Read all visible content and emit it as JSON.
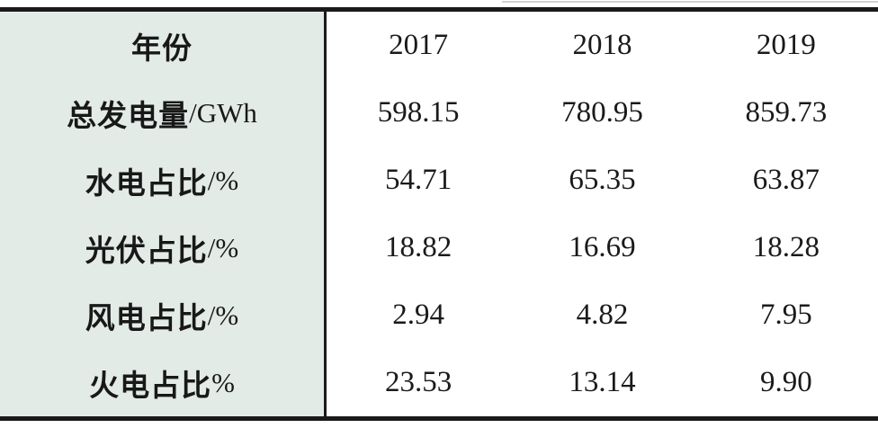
{
  "table": {
    "header": {
      "label": "年份",
      "unit": "",
      "years": [
        "2017",
        "2018",
        "2019"
      ]
    },
    "rows": [
      {
        "label": "总发电量",
        "unit": "/GWh",
        "values": [
          "598.15",
          "780.95",
          "859.73"
        ]
      },
      {
        "label": "水电占比",
        "unit": "/%",
        "values": [
          "54.71",
          "65.35",
          "63.87"
        ]
      },
      {
        "label": "光伏占比",
        "unit": "/%",
        "values": [
          "18.82",
          "16.69",
          "18.28"
        ]
      },
      {
        "label": "风电占比",
        "unit": "/%",
        "values": [
          "2.94",
          "4.82",
          "7.95"
        ]
      },
      {
        "label": "火电占比",
        "unit": "%",
        "values": [
          "23.53",
          "13.14",
          "9.90"
        ]
      }
    ],
    "colors": {
      "label_column_bg": "#e3ebe7",
      "border": "#1a1a1a",
      "text": "#1a1a1a"
    }
  },
  "chart_data": {
    "type": "table",
    "columns": [
      "年份",
      "2017",
      "2018",
      "2019"
    ],
    "rows": [
      [
        "总发电量/GWh",
        598.15,
        780.95,
        859.73
      ],
      [
        "水电占比/%",
        54.71,
        65.35,
        63.87
      ],
      [
        "光伏占比/%",
        18.82,
        16.69,
        18.28
      ],
      [
        "风电占比/%",
        2.94,
        4.82,
        7.95
      ],
      [
        "火电占比%",
        23.53,
        13.14,
        9.9
      ]
    ]
  }
}
